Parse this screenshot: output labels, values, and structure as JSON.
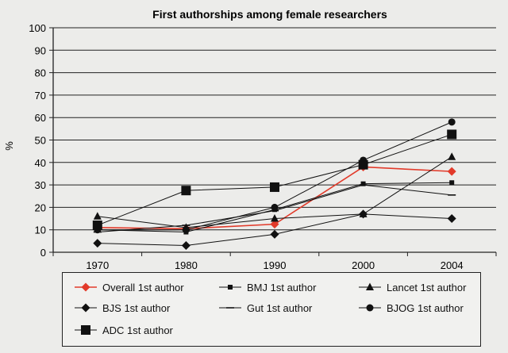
{
  "chart_data": {
    "type": "line",
    "title": "First authorships among female researchers",
    "ylabel": "%",
    "xlabel": "",
    "categories": [
      "1970",
      "1980",
      "1990",
      "2000",
      "2004"
    ],
    "ylim": [
      0,
      100
    ],
    "yticks": [
      0,
      10,
      20,
      30,
      40,
      50,
      60,
      70,
      80,
      90,
      100
    ],
    "grid": "horizontal",
    "legend_position": "bottom",
    "series": [
      {
        "name": "Overall 1st author",
        "marker": "diamond",
        "color": "#e23a2a",
        "values": [
          11,
          10.5,
          12.5,
          38,
          36
        ]
      },
      {
        "name": "BMJ 1st author",
        "marker": "small-square",
        "color": "#111111",
        "values": [
          10,
          9,
          19,
          30.5,
          31
        ]
      },
      {
        "name": "Lancet 1st author",
        "marker": "triangle",
        "color": "#111111",
        "values": [
          16,
          11,
          15,
          17,
          42.5
        ]
      },
      {
        "name": "BJS 1st author",
        "marker": "diamond",
        "color": "#111111",
        "values": [
          4,
          3,
          8,
          17,
          15
        ]
      },
      {
        "name": "Gut 1st author",
        "marker": "dash",
        "color": "#111111",
        "values": [
          9,
          12,
          18.5,
          30,
          25.5
        ]
      },
      {
        "name": "BJOG 1st author",
        "marker": "circle",
        "color": "#111111",
        "values": [
          10,
          10,
          20,
          41,
          58
        ]
      },
      {
        "name": "ADC 1st author",
        "marker": "big-square",
        "color": "#111111",
        "values": [
          12,
          27.5,
          29,
          39,
          52.5
        ]
      }
    ]
  }
}
